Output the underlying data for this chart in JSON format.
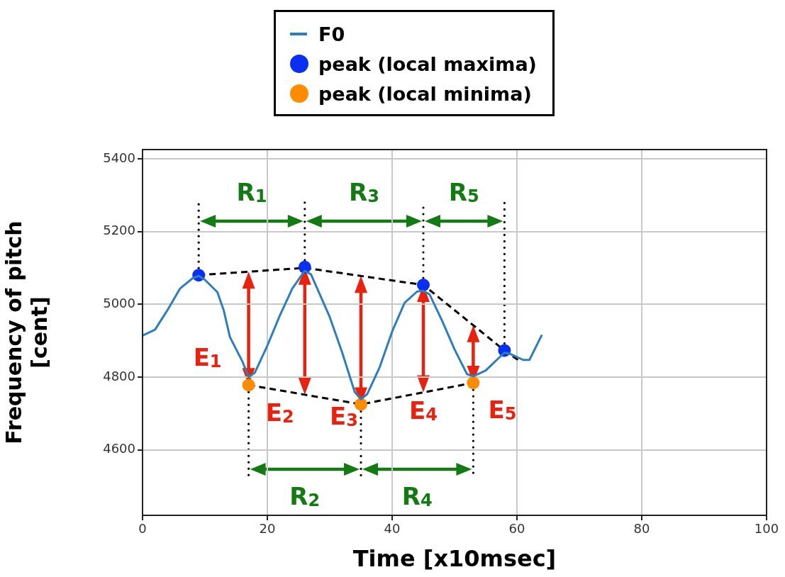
{
  "chart_data": {
    "type": "line",
    "xlabel": "Time [x10msec]",
    "ylabel": "Frequency of pitch [cent]",
    "xlim": [
      0,
      100
    ],
    "xticks": [
      0,
      20,
      40,
      60,
      80,
      100
    ],
    "ylim": [
      4420,
      5425
    ],
    "yticks": [
      4600,
      4800,
      5000,
      5200,
      5400
    ],
    "grid": true,
    "legend": "top",
    "marker": "none",
    "line_style": "solid",
    "series": [
      {
        "name": "F0",
        "color": "#2e7ebc",
        "x": [
          0,
          2,
          4,
          6,
          8,
          9,
          10,
          12,
          13,
          14,
          16,
          17,
          18,
          20,
          22,
          24,
          26,
          27,
          28,
          30,
          32,
          34,
          35,
          36,
          38,
          40,
          42,
          44,
          45,
          46,
          48,
          50,
          52,
          53,
          55,
          57,
          58,
          59,
          61,
          62,
          64
        ],
        "values": [
          4914,
          4930,
          4984,
          5043,
          5071,
          5078,
          5067,
          5033,
          4984,
          4910,
          4843,
          4800,
          4812,
          4886,
          4969,
          5043,
          5092,
          5082,
          5043,
          4965,
          4867,
          4759,
          4739,
          4753,
          4827,
          4925,
          5004,
          5035,
          5037,
          5027,
          4955,
          4876,
          4808,
          4802,
          4818,
          4851,
          4867,
          4863,
          4847,
          4847,
          4916
        ]
      },
      {
        "color": "#000000",
        "line_style": "dashed",
        "x": [
          9,
          26,
          45,
          58,
          60.5
        ],
        "values": [
          5080,
          5100,
          5053,
          4873,
          4843
        ]
      },
      {
        "color": "#000000",
        "line_style": "dashed",
        "x": [
          17,
          35,
          53
        ],
        "values": [
          4778,
          4725,
          4784
        ]
      },
      {
        "name": "peak (local maxima)",
        "type": "scatter",
        "marker": "circle",
        "color": "#0a2ff0",
        "x": [
          9,
          26,
          45,
          58
        ],
        "values": [
          5080,
          5102,
          5053,
          4873
        ]
      },
      {
        "name": "peak (local minima)",
        "type": "scatter",
        "marker": "circle",
        "color": "#ff8c00",
        "x": [
          17,
          35,
          53
        ],
        "values": [
          4778,
          4725,
          4784
        ]
      }
    ],
    "annotations": [
      "E$_{1}$",
      "E$_{2}$",
      "E$_{3}$",
      "E$_{4}$",
      "E$_{5}$",
      "R$_{1}$",
      "R$_{2}$",
      "R$_{3}$",
      "R$_{4}$",
      "R$_{5}$"
    ]
  }
}
